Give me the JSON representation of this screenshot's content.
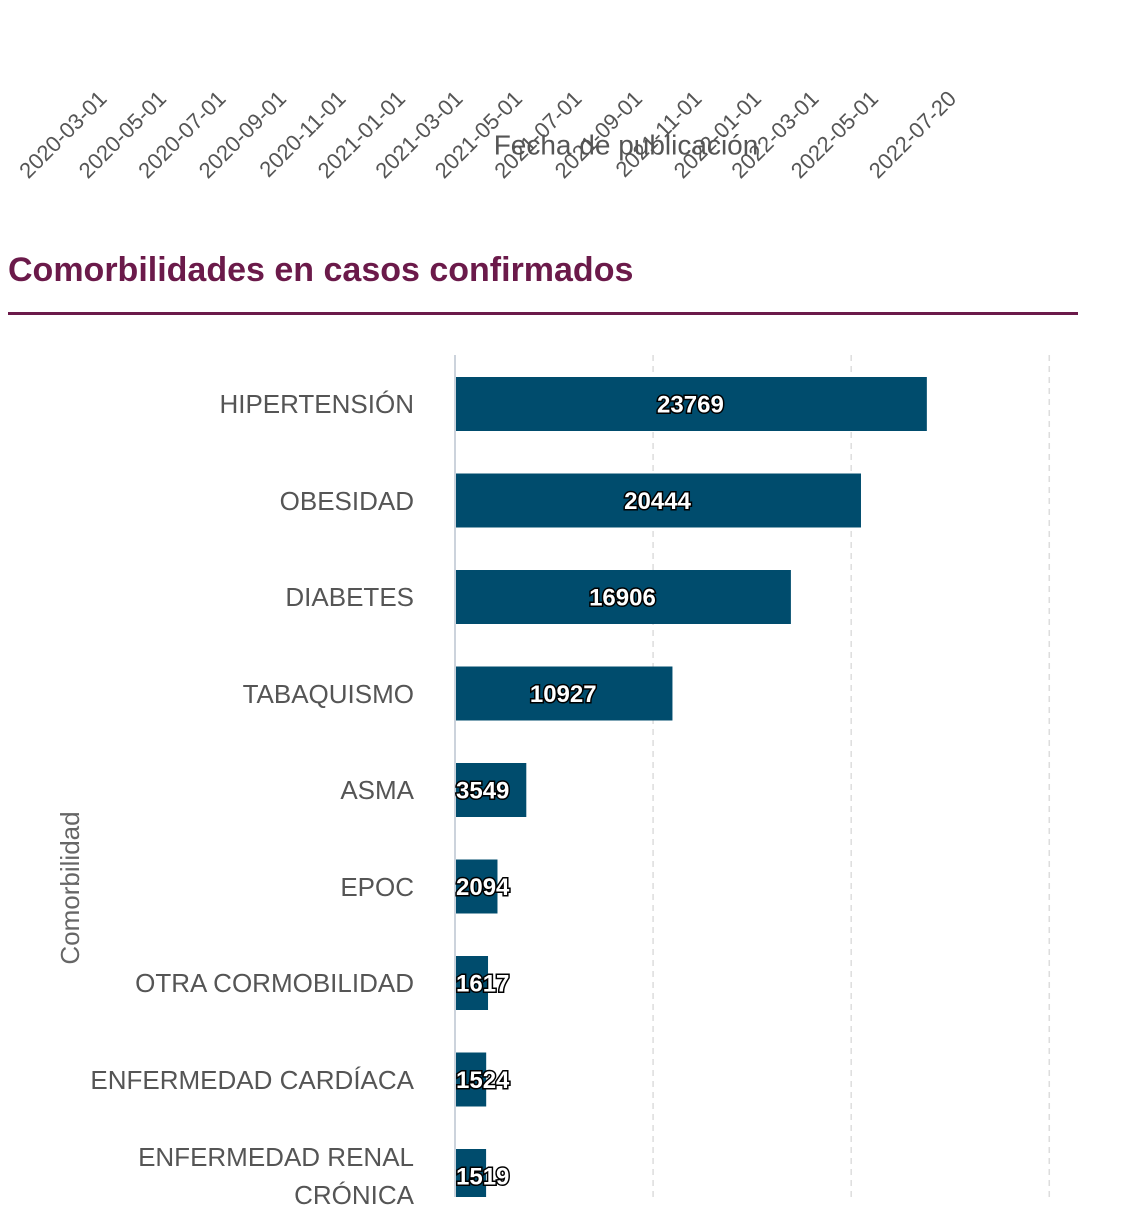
{
  "top_axis": {
    "ticks": [
      "2020-03-01",
      "2020-05-01",
      "2020-07-01",
      "2020-09-01",
      "2020-11-01",
      "2021-01-01",
      "2021-03-01",
      "2021-05-01",
      "2021-07-01",
      "2021-09-01",
      "2021-11-01",
      "2022-01-01",
      "2022-03-01",
      "2022-05-01",
      "2022-07-20"
    ],
    "label": "Fecha de publicación"
  },
  "section": {
    "title": "Comorbilidades en casos confirmados"
  },
  "chart_data": {
    "type": "hbar",
    "ylabel": "Comorbilidad",
    "categories": [
      "HIPERTENSIÓN",
      "OBESIDAD",
      "DIABETES",
      "TABAQUISMO",
      "ASMA",
      "EPOC",
      "OTRA CORMOBILIDAD",
      "ENFERMEDAD CARDÍACA",
      "ENFERMEDAD RENAL CRÓNICA"
    ],
    "values": [
      23769,
      20444,
      16906,
      10927,
      3549,
      2094,
      1617,
      1524,
      1519
    ],
    "color": "#004c6d",
    "xlim": [
      0,
      31450
    ],
    "xticks": [
      0,
      10000,
      20000,
      30000
    ],
    "grid": true
  }
}
